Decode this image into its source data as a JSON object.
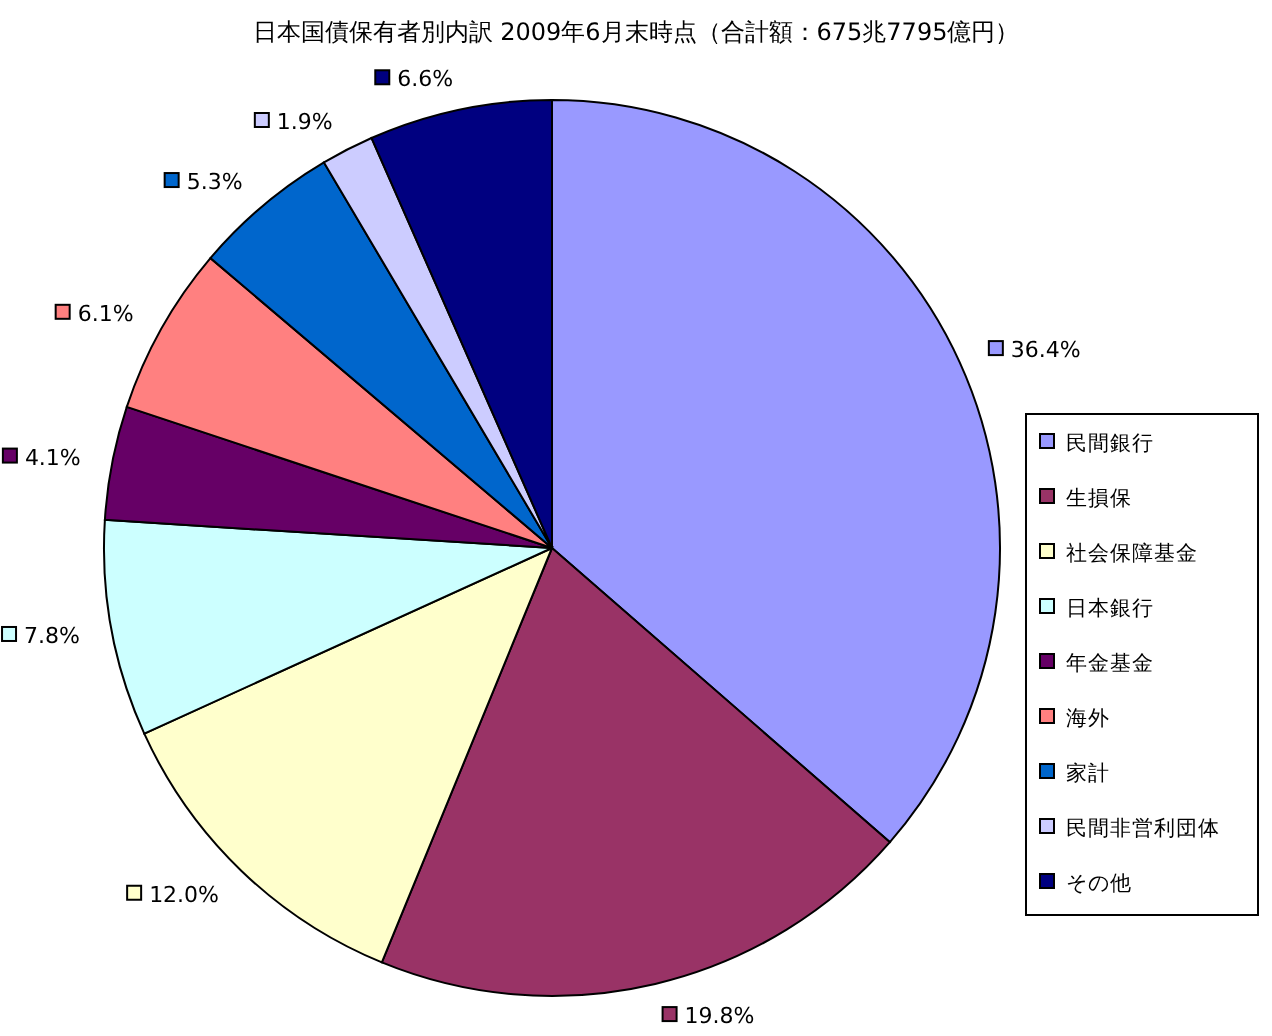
{
  "chart_data": {
    "type": "pie",
    "title": "日本国債保有者別内訳  2009年6月末時点（合計額：675兆7795億円）",
    "categories": [
      "民間銀行",
      "生損保",
      "社会保障基金",
      "日本銀行",
      "年金基金",
      "海外",
      "家計",
      "民間非営利団体",
      "その他"
    ],
    "values": [
      36.4,
      19.8,
      12.0,
      7.8,
      4.1,
      6.1,
      5.3,
      1.9,
      6.6
    ],
    "value_labels": [
      "36.4%",
      "19.8%",
      "12.0%",
      "7.8%",
      "4.1%",
      "6.1%",
      "5.3%",
      "1.9%",
      "6.6%"
    ],
    "colors": [
      "#9999ff",
      "#993366",
      "#ffffcc",
      "#ccffff",
      "#660066",
      "#ff8080",
      "#0066cc",
      "#ccccff",
      "#000080"
    ],
    "legend": "right"
  }
}
